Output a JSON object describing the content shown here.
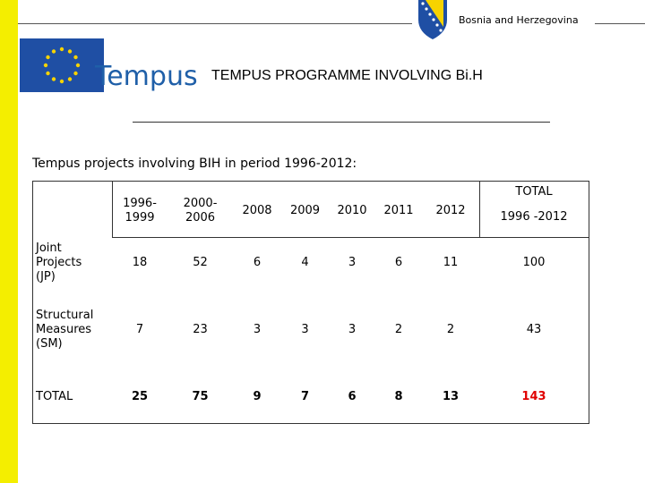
{
  "header": {
    "country": "Bosnia and Herzegovina",
    "logo_text": "Tempus",
    "title": "TEMPUS PROGRAMME INVOLVING Bi.H"
  },
  "subtitle": "Tempus projects involving BIH in period 1996-2012:",
  "table": {
    "total_header": "TOTAL",
    "columns": [
      "1996-\n1999",
      "2000-\n2006",
      "2008",
      "2009",
      "2010",
      "2011",
      "2012",
      "1996 -2012"
    ],
    "rows": [
      {
        "label": "Joint\nProjects\n(JP)",
        "values": [
          "18",
          "52",
          "6",
          "4",
          "3",
          "6",
          "11",
          "100"
        ]
      },
      {
        "label": "Structural\nMeasures\n(SM)",
        "values": [
          "7",
          "23",
          "3",
          "3",
          "3",
          "2",
          "2",
          "43"
        ]
      },
      {
        "label": "TOTAL",
        "values": [
          "25",
          "75",
          "9",
          "7",
          "6",
          "8",
          "13",
          "143"
        ]
      }
    ]
  },
  "colors": {
    "accent_yellow": "#f4ee00",
    "total_red": "#e00000",
    "eu_blue": "#1f4fa4"
  }
}
